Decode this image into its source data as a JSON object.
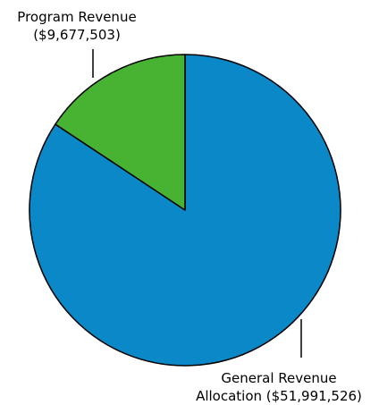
{
  "chart_data": {
    "type": "pie",
    "slices": [
      {
        "label_lines": [
          "General Revenue",
          "Allocation ($51,991,526)"
        ],
        "value": 51991526,
        "color": "#0a88c8"
      },
      {
        "label_lines": [
          "Program Revenue",
          "($9,677,503)"
        ],
        "value": 9677503,
        "color": "#48b232"
      }
    ],
    "legend": "none",
    "grid": false
  }
}
